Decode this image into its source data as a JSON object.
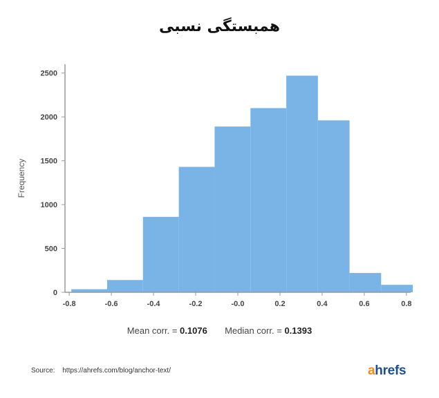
{
  "title": "همبستگی نسبی",
  "stats": {
    "mean_label": "Mean corr. =",
    "mean_value": "0.1076",
    "median_label": "Median corr. =",
    "median_value": "0.1393"
  },
  "source": {
    "label": "Source:",
    "url": "https://ahrefs.com/blog/anchor-text/"
  },
  "logo": {
    "first": "a",
    "rest": "hrefs"
  },
  "colors": {
    "bar": "#7ab4e6",
    "axis": "#999999",
    "text": "#333333",
    "logo_accent": "#f08c1e",
    "logo_main": "#1f4e8c"
  },
  "chart_data": {
    "type": "bar",
    "title": "همبستگی نسبی",
    "xlabel": "",
    "ylabel": "Frequency",
    "xlim": [
      -0.82,
      0.82
    ],
    "ylim": [
      0,
      2600
    ],
    "x_ticks": [
      -0.8,
      -0.6,
      -0.4,
      -0.2,
      0.0,
      0.2,
      0.4,
      0.6,
      0.8
    ],
    "x_tick_labels": [
      "-0.8",
      "-0.6",
      "-0.4",
      "-0.2",
      "-0.0",
      "0.2",
      "0.4",
      "0.6",
      "0.8"
    ],
    "y_ticks": [
      0,
      500,
      1000,
      1500,
      2000,
      2500
    ],
    "y_tick_labels": [
      "0",
      "500",
      "1000",
      "1500",
      "2000",
      "2500"
    ],
    "bins": [
      {
        "start": -0.79,
        "end": -0.62,
        "value": 35
      },
      {
        "start": -0.62,
        "end": -0.45,
        "value": 140
      },
      {
        "start": -0.45,
        "end": -0.28,
        "value": 860
      },
      {
        "start": -0.28,
        "end": -0.11,
        "value": 1430
      },
      {
        "start": -0.11,
        "end": 0.06,
        "value": 1890
      },
      {
        "start": 0.06,
        "end": 0.23,
        "value": 2100
      },
      {
        "start": 0.23,
        "end": 0.38,
        "value": 2470
      },
      {
        "start": 0.38,
        "end": 0.53,
        "value": 1960
      },
      {
        "start": 0.53,
        "end": 0.68,
        "value": 220
      },
      {
        "start": 0.68,
        "end": 0.83,
        "value": 85
      }
    ],
    "grid": false,
    "legend": "none"
  }
}
